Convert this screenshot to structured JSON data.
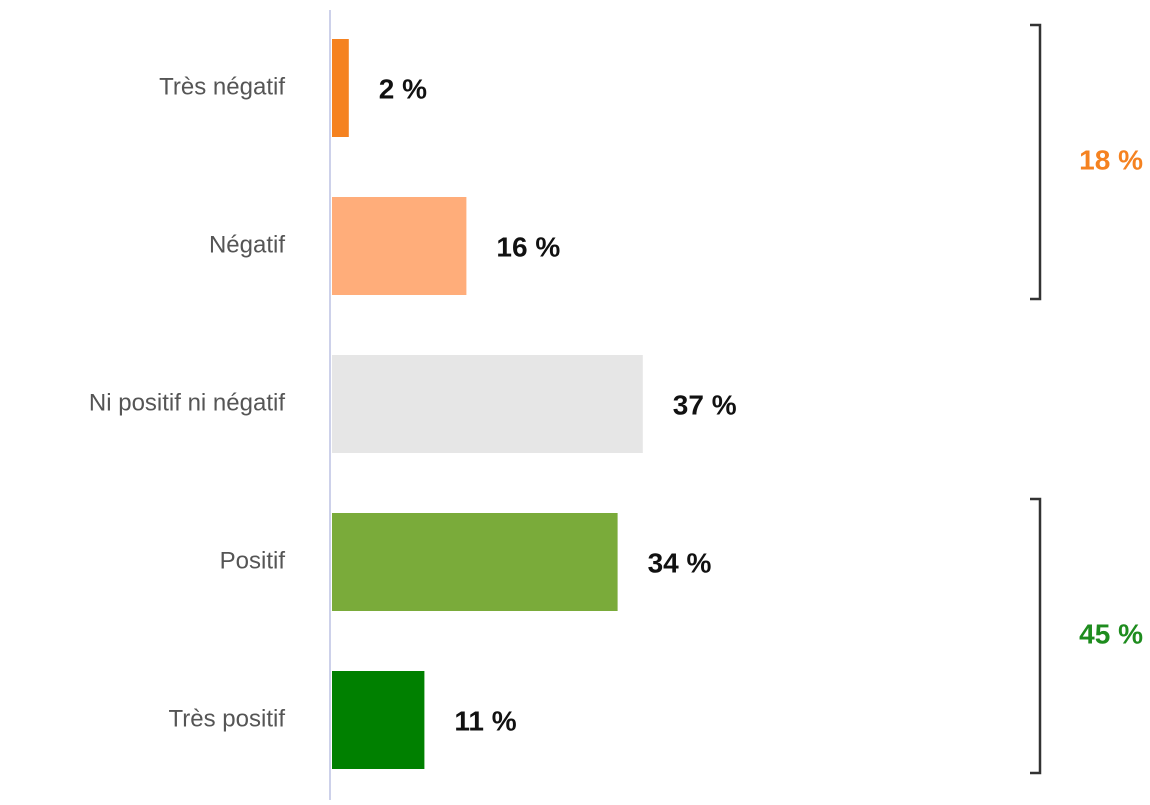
{
  "chart_data": {
    "type": "bar",
    "orientation": "horizontal",
    "categories": [
      "Très négatif",
      "Négatif",
      "Ni positif ni négatif",
      "Positif",
      "Très positif"
    ],
    "values": [
      2,
      16,
      37,
      34,
      11
    ],
    "value_labels": [
      "2 %",
      "16 %",
      "37 %",
      "34 %",
      "11 %"
    ],
    "colors": [
      "#f58220",
      "#ffad7a",
      "#e6e6e6",
      "#7aab3a",
      "#008000"
    ],
    "annotations": [
      {
        "label": "18 %",
        "value": 18,
        "color": "#f58220",
        "categories": [
          "Très négatif",
          "Négatif"
        ]
      },
      {
        "label": "45 %",
        "value": 45,
        "color": "#1e8c1e",
        "categories": [
          "Positif",
          "Très positif"
        ]
      }
    ]
  }
}
